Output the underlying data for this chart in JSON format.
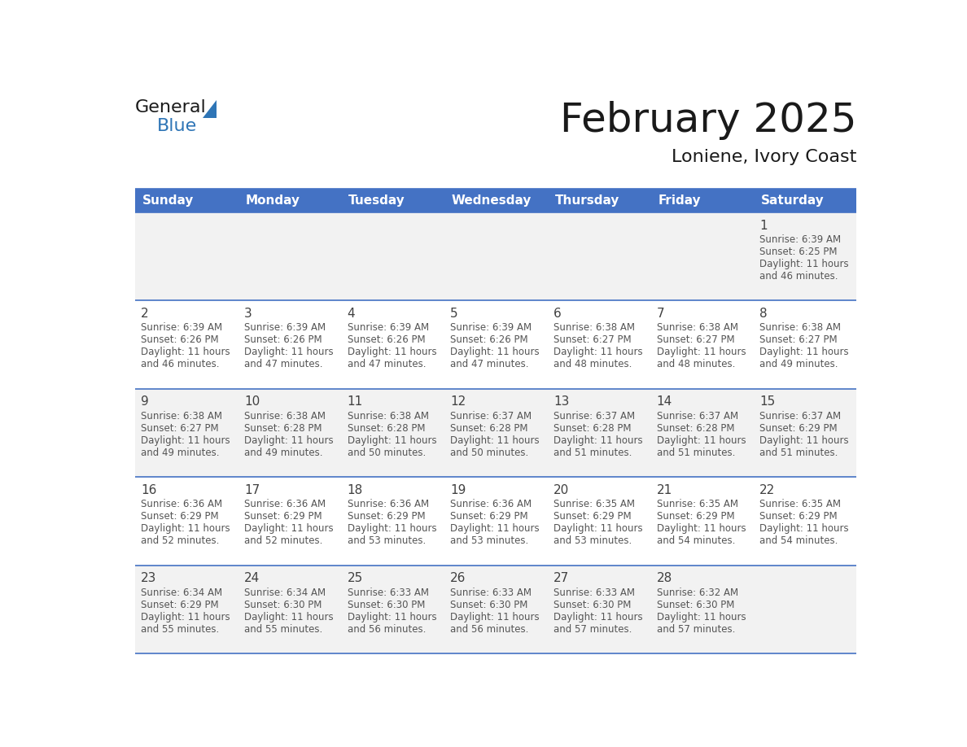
{
  "title": "February 2025",
  "subtitle": "Loniene, Ivory Coast",
  "header_bg_color": "#4472C4",
  "header_text_color": "#FFFFFF",
  "cell_bg_color_odd": "#F2F2F2",
  "cell_bg_color_even": "#FFFFFF",
  "day_headers": [
    "Sunday",
    "Monday",
    "Tuesday",
    "Wednesday",
    "Thursday",
    "Friday",
    "Saturday"
  ],
  "calendar_data": [
    [
      null,
      null,
      null,
      null,
      null,
      null,
      {
        "day": 1,
        "sunrise": "6:39 AM",
        "sunset": "6:25 PM",
        "daylight": "11 hours\nand 46 minutes."
      }
    ],
    [
      {
        "day": 2,
        "sunrise": "6:39 AM",
        "sunset": "6:26 PM",
        "daylight": "11 hours\nand 46 minutes."
      },
      {
        "day": 3,
        "sunrise": "6:39 AM",
        "sunset": "6:26 PM",
        "daylight": "11 hours\nand 47 minutes."
      },
      {
        "day": 4,
        "sunrise": "6:39 AM",
        "sunset": "6:26 PM",
        "daylight": "11 hours\nand 47 minutes."
      },
      {
        "day": 5,
        "sunrise": "6:39 AM",
        "sunset": "6:26 PM",
        "daylight": "11 hours\nand 47 minutes."
      },
      {
        "day": 6,
        "sunrise": "6:38 AM",
        "sunset": "6:27 PM",
        "daylight": "11 hours\nand 48 minutes."
      },
      {
        "day": 7,
        "sunrise": "6:38 AM",
        "sunset": "6:27 PM",
        "daylight": "11 hours\nand 48 minutes."
      },
      {
        "day": 8,
        "sunrise": "6:38 AM",
        "sunset": "6:27 PM",
        "daylight": "11 hours\nand 49 minutes."
      }
    ],
    [
      {
        "day": 9,
        "sunrise": "6:38 AM",
        "sunset": "6:27 PM",
        "daylight": "11 hours\nand 49 minutes."
      },
      {
        "day": 10,
        "sunrise": "6:38 AM",
        "sunset": "6:28 PM",
        "daylight": "11 hours\nand 49 minutes."
      },
      {
        "day": 11,
        "sunrise": "6:38 AM",
        "sunset": "6:28 PM",
        "daylight": "11 hours\nand 50 minutes."
      },
      {
        "day": 12,
        "sunrise": "6:37 AM",
        "sunset": "6:28 PM",
        "daylight": "11 hours\nand 50 minutes."
      },
      {
        "day": 13,
        "sunrise": "6:37 AM",
        "sunset": "6:28 PM",
        "daylight": "11 hours\nand 51 minutes."
      },
      {
        "day": 14,
        "sunrise": "6:37 AM",
        "sunset": "6:28 PM",
        "daylight": "11 hours\nand 51 minutes."
      },
      {
        "day": 15,
        "sunrise": "6:37 AM",
        "sunset": "6:29 PM",
        "daylight": "11 hours\nand 51 minutes."
      }
    ],
    [
      {
        "day": 16,
        "sunrise": "6:36 AM",
        "sunset": "6:29 PM",
        "daylight": "11 hours\nand 52 minutes."
      },
      {
        "day": 17,
        "sunrise": "6:36 AM",
        "sunset": "6:29 PM",
        "daylight": "11 hours\nand 52 minutes."
      },
      {
        "day": 18,
        "sunrise": "6:36 AM",
        "sunset": "6:29 PM",
        "daylight": "11 hours\nand 53 minutes."
      },
      {
        "day": 19,
        "sunrise": "6:36 AM",
        "sunset": "6:29 PM",
        "daylight": "11 hours\nand 53 minutes."
      },
      {
        "day": 20,
        "sunrise": "6:35 AM",
        "sunset": "6:29 PM",
        "daylight": "11 hours\nand 53 minutes."
      },
      {
        "day": 21,
        "sunrise": "6:35 AM",
        "sunset": "6:29 PM",
        "daylight": "11 hours\nand 54 minutes."
      },
      {
        "day": 22,
        "sunrise": "6:35 AM",
        "sunset": "6:29 PM",
        "daylight": "11 hours\nand 54 minutes."
      }
    ],
    [
      {
        "day": 23,
        "sunrise": "6:34 AM",
        "sunset": "6:29 PM",
        "daylight": "11 hours\nand 55 minutes."
      },
      {
        "day": 24,
        "sunrise": "6:34 AM",
        "sunset": "6:30 PM",
        "daylight": "11 hours\nand 55 minutes."
      },
      {
        "day": 25,
        "sunrise": "6:33 AM",
        "sunset": "6:30 PM",
        "daylight": "11 hours\nand 56 minutes."
      },
      {
        "day": 26,
        "sunrise": "6:33 AM",
        "sunset": "6:30 PM",
        "daylight": "11 hours\nand 56 minutes."
      },
      {
        "day": 27,
        "sunrise": "6:33 AM",
        "sunset": "6:30 PM",
        "daylight": "11 hours\nand 57 minutes."
      },
      {
        "day": 28,
        "sunrise": "6:32 AM",
        "sunset": "6:30 PM",
        "daylight": "11 hours\nand 57 minutes."
      },
      null
    ]
  ],
  "logo_triangle_color": "#2E75B6",
  "line_color": "#4472C4",
  "day_num_color": "#404040",
  "info_text_color": "#555555",
  "title_fontsize": 36,
  "subtitle_fontsize": 16,
  "header_fontsize": 11,
  "day_num_fontsize": 11,
  "info_fontsize": 8.5
}
